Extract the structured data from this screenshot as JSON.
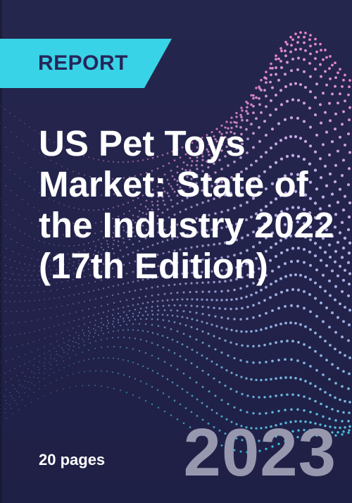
{
  "cover": {
    "badge": "REPORT",
    "title": "US Pet Toys Market: State of the Industry 2022 (17th Edition)",
    "pages": "20 pages",
    "year": "2023"
  },
  "colors": {
    "background": "#24244a",
    "banner": "#38d3e6",
    "banner_text": "#26265a",
    "title": "#ffffff",
    "year": "#9797ae",
    "wave_pink": "#f08ad0",
    "wave_lavender": "#c8b4ec",
    "wave_blue": "#9fb7e8",
    "wave_cyan": "#46c7e4"
  }
}
